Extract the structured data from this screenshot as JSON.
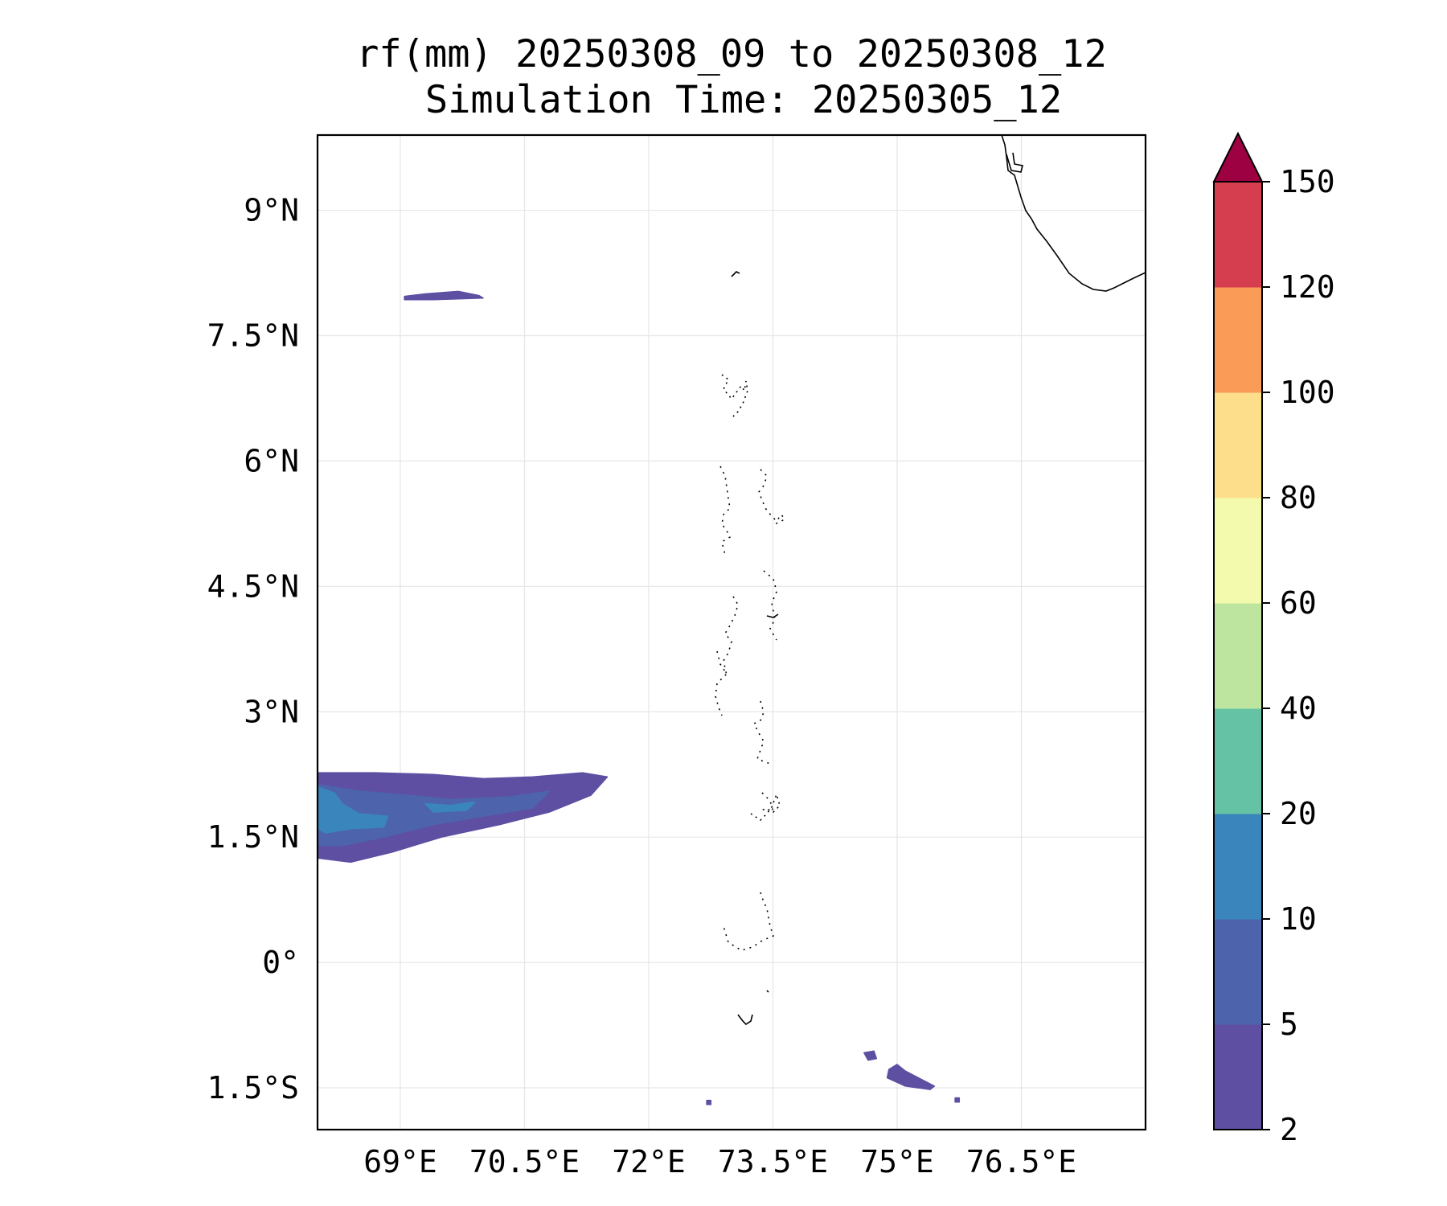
{
  "title": {
    "line1": "rf(mm) 20250308_09 to 20250308_12",
    "line2": "Simulation Time: 20250305_12"
  },
  "map": {
    "lon_range": [
      68.0,
      78.0
    ],
    "lat_range": [
      -2.0,
      9.9
    ],
    "gridlines": true,
    "x_ticks": [
      {
        "value": 69.0,
        "label": "69°E"
      },
      {
        "value": 70.5,
        "label": "70.5°E"
      },
      {
        "value": 72.0,
        "label": "72°E"
      },
      {
        "value": 73.5,
        "label": "73.5°E"
      },
      {
        "value": 75.0,
        "label": "75°E"
      },
      {
        "value": 76.5,
        "label": "76.5°E"
      }
    ],
    "y_ticks": [
      {
        "value": 9.0,
        "label": "9°N"
      },
      {
        "value": 7.5,
        "label": "7.5°N"
      },
      {
        "value": 6.0,
        "label": "6°N"
      },
      {
        "value": 4.5,
        "label": "4.5°N"
      },
      {
        "value": 3.0,
        "label": "3°N"
      },
      {
        "value": 1.5,
        "label": "1.5°N"
      },
      {
        "value": 0.0,
        "label": "0°"
      },
      {
        "value": -1.5,
        "label": "1.5°S"
      }
    ]
  },
  "colorbar": {
    "levels": [
      "2",
      "5",
      "10",
      "20",
      "40",
      "60",
      "80",
      "100",
      "120",
      "150"
    ],
    "colors": [
      "#5e4fa2",
      "#4d64ad",
      "#3a86bc",
      "#66c2a5",
      "#bde5a0",
      "#f4faad",
      "#fddf8b",
      "#fa9b58",
      "#d53e4f",
      "#9e0142"
    ],
    "extend": "max"
  },
  "chart_data": {
    "type": "heatmap",
    "variable": "rf(mm)",
    "levels": [
      2,
      5,
      10,
      20,
      40,
      60,
      80,
      100,
      120,
      150
    ],
    "x_range": [
      68.0,
      78.0
    ],
    "y_range": [
      -2.0,
      9.9
    ],
    "rain_areas": [
      {
        "level_min": 2,
        "points": [
          [
            69.05,
            7.97
          ],
          [
            69.3,
            8.0
          ],
          [
            69.7,
            8.03
          ],
          [
            69.95,
            7.98
          ],
          [
            70.0,
            7.95
          ],
          [
            69.4,
            7.93
          ],
          [
            69.05,
            7.93
          ]
        ]
      },
      {
        "level_min": 2,
        "points": [
          [
            68.0,
            2.27
          ],
          [
            68.7,
            2.27
          ],
          [
            69.4,
            2.25
          ],
          [
            70.0,
            2.2
          ],
          [
            70.6,
            2.22
          ],
          [
            71.2,
            2.27
          ],
          [
            71.5,
            2.22
          ],
          [
            71.3,
            2.0
          ],
          [
            70.8,
            1.8
          ],
          [
            70.2,
            1.65
          ],
          [
            69.5,
            1.5
          ],
          [
            68.9,
            1.32
          ],
          [
            68.4,
            1.2
          ],
          [
            68.0,
            1.25
          ]
        ]
      },
      {
        "level_min": 5,
        "points": [
          [
            68.0,
            2.13
          ],
          [
            68.5,
            2.05
          ],
          [
            69.1,
            2.0
          ],
          [
            69.6,
            1.95
          ],
          [
            70.3,
            1.98
          ],
          [
            70.8,
            2.05
          ],
          [
            70.6,
            1.85
          ],
          [
            70.0,
            1.75
          ],
          [
            69.4,
            1.65
          ],
          [
            68.8,
            1.5
          ],
          [
            68.3,
            1.4
          ],
          [
            68.0,
            1.4
          ]
        ]
      },
      {
        "level_min": 10,
        "points": [
          [
            68.0,
            2.1
          ],
          [
            68.2,
            2.03
          ],
          [
            68.3,
            1.9
          ],
          [
            68.5,
            1.78
          ],
          [
            68.85,
            1.75
          ],
          [
            68.8,
            1.62
          ],
          [
            68.4,
            1.6
          ],
          [
            68.1,
            1.55
          ],
          [
            68.0,
            1.6
          ]
        ]
      },
      {
        "level_min": 10,
        "points": [
          [
            69.3,
            1.9
          ],
          [
            69.6,
            1.88
          ],
          [
            69.9,
            1.92
          ],
          [
            69.8,
            1.82
          ],
          [
            69.4,
            1.8
          ]
        ]
      },
      {
        "level_min": 2,
        "points": [
          [
            74.6,
            -1.08
          ],
          [
            74.72,
            -1.06
          ],
          [
            74.75,
            -1.15
          ],
          [
            74.65,
            -1.17
          ]
        ]
      },
      {
        "level_min": 2,
        "points": [
          [
            74.9,
            -1.28
          ],
          [
            75.0,
            -1.22
          ],
          [
            75.1,
            -1.3
          ],
          [
            75.45,
            -1.48
          ],
          [
            75.4,
            -1.52
          ],
          [
            75.1,
            -1.48
          ],
          [
            74.88,
            -1.38
          ]
        ]
      },
      {
        "level_min": 2,
        "points": [
          [
            72.7,
            -1.65
          ],
          [
            72.75,
            -1.65
          ],
          [
            72.75,
            -1.7
          ],
          [
            72.7,
            -1.7
          ]
        ]
      },
      {
        "level_min": 2,
        "points": [
          [
            75.7,
            -1.62
          ],
          [
            75.75,
            -1.62
          ],
          [
            75.75,
            -1.67
          ],
          [
            75.7,
            -1.67
          ]
        ]
      }
    ]
  }
}
